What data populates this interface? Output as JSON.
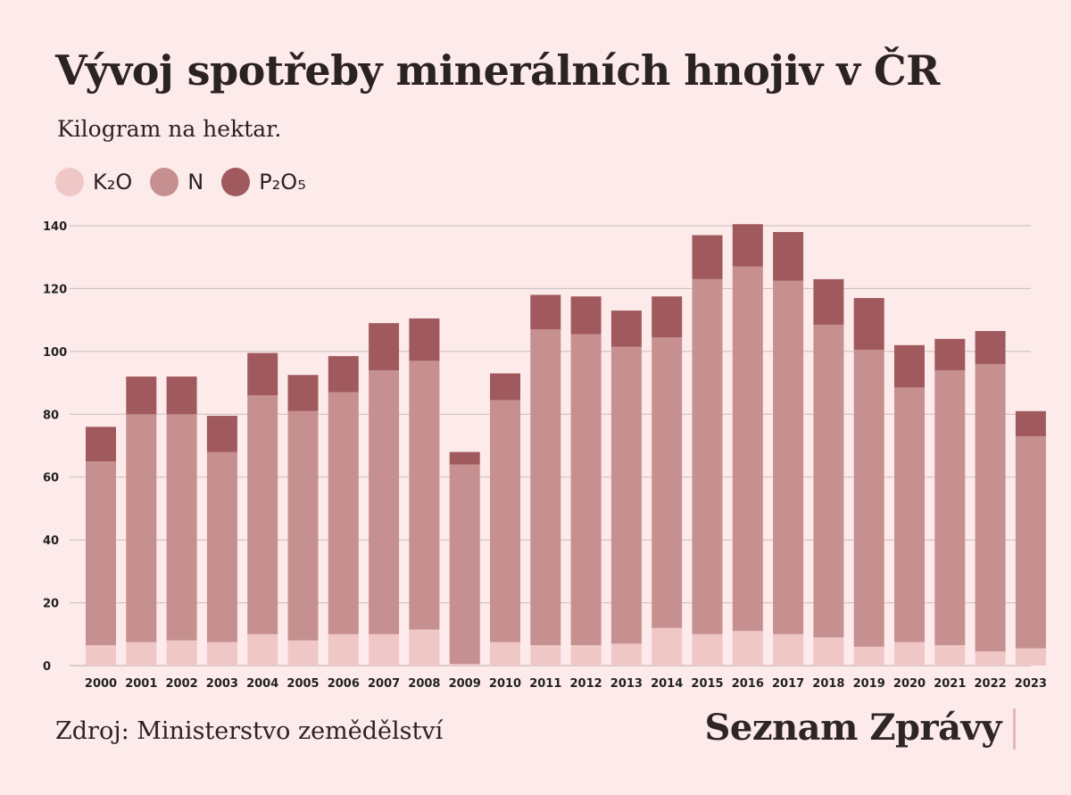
{
  "title": "Vývoj spotřeby minerálních hnojiv v ČR",
  "subtitle": "Kilogram na hektar.",
  "legend": [
    {
      "label": "K₂O",
      "color": "#f0c7c7"
    },
    {
      "label": "N",
      "color": "#c79090"
    },
    {
      "label": "P₂O₅",
      "color": "#a05a5e"
    }
  ],
  "source": "Zdroj: Ministerstvo zemědělství",
  "brand": "Seznam Zprávy",
  "chart_data": {
    "type": "bar",
    "stacked": true,
    "categories": [
      "2000",
      "2001",
      "2002",
      "2003",
      "2004",
      "2005",
      "2006",
      "2007",
      "2008",
      "2009",
      "2010",
      "2011",
      "2012",
      "2013",
      "2014",
      "2015",
      "2016",
      "2017",
      "2018",
      "2019",
      "2020",
      "2021",
      "2022",
      "2023"
    ],
    "series": [
      {
        "name": "K₂O",
        "color": "#f0c7c7",
        "values": [
          6.5,
          7.5,
          8,
          7.5,
          10,
          8,
          10,
          10,
          11.5,
          0.5,
          7.5,
          6.5,
          6.5,
          7,
          12,
          10,
          11,
          10,
          9,
          6,
          7.5,
          6.5,
          4.5,
          5.5
        ]
      },
      {
        "name": "N",
        "color": "#c79090",
        "values": [
          58.5,
          72.5,
          72,
          60.5,
          76,
          73,
          77,
          84,
          85.5,
          63.5,
          77,
          100.5,
          99,
          94.5,
          92.5,
          113,
          116,
          112.5,
          99.5,
          94.5,
          81,
          87.5,
          91.5,
          67.5
        ]
      },
      {
        "name": "P₂O₅",
        "color": "#a05a5e",
        "values": [
          11,
          12,
          12,
          11.5,
          13.5,
          11.5,
          11.5,
          15,
          13.5,
          4,
          8.5,
          11,
          12,
          11.5,
          13,
          14,
          13.5,
          15.5,
          14.5,
          16.5,
          13.5,
          10,
          10.5,
          8
        ]
      }
    ],
    "yticks": [
      0,
      20,
      40,
      60,
      80,
      100,
      120,
      140
    ],
    "ylim": [
      0,
      140
    ],
    "grid": true,
    "legend_position": "top-left"
  }
}
